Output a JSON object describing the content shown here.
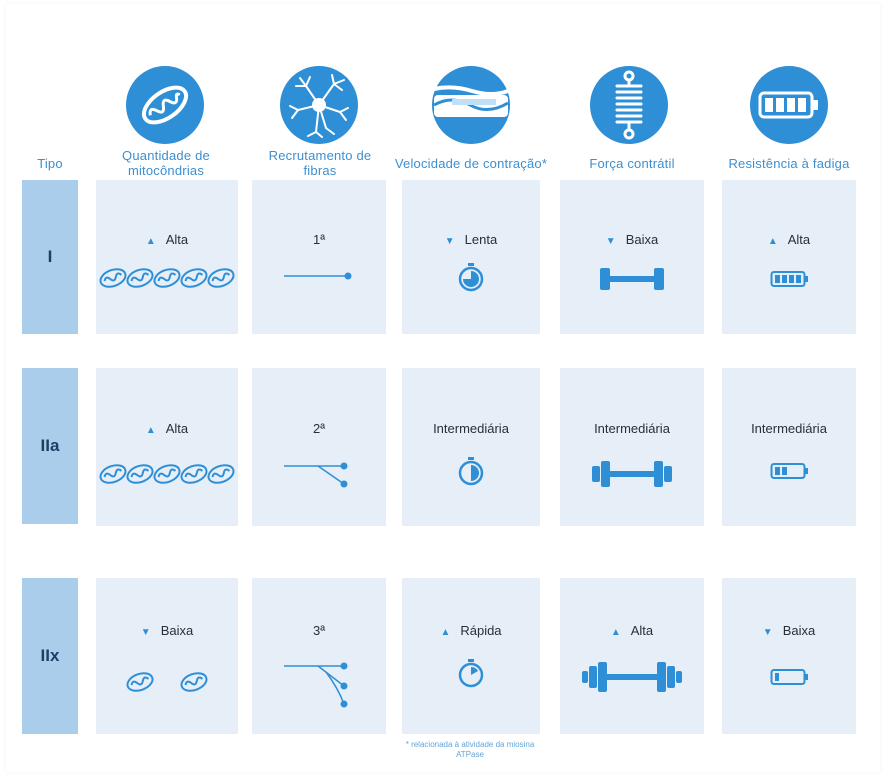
{
  "header": {
    "tipo": "Tipo",
    "columns": [
      {
        "id": "mito",
        "label": "Quantidade de mitocôndrias",
        "icon": "mitochondria-icon"
      },
      {
        "id": "recr",
        "label": "Recrutamento de fibras",
        "icon": "neuron-icon"
      },
      {
        "id": "vel",
        "label": "Velocidade de contração*",
        "icon": "muscle-fiber-icon"
      },
      {
        "id": "forca",
        "label": "Força contrátil",
        "icon": "spring-icon"
      },
      {
        "id": "resist",
        "label": "Resistência à fadiga",
        "icon": "battery-icon"
      }
    ]
  },
  "rows": [
    {
      "type": "I",
      "mito": {
        "arrow": "up",
        "label": "Alta"
      },
      "recr": {
        "label": "1ª"
      },
      "vel": {
        "arrow": "down",
        "label": "Lenta"
      },
      "forca": {
        "arrow": "down",
        "label": "Baixa"
      },
      "resist": {
        "arrow": "up",
        "label": "Alta"
      }
    },
    {
      "type": "IIa",
      "mito": {
        "arrow": "up",
        "label": "Alta"
      },
      "recr": {
        "label": "2ª"
      },
      "vel": {
        "arrow": "",
        "label": "Intermediária"
      },
      "forca": {
        "arrow": "",
        "label": "Intermediária"
      },
      "resist": {
        "arrow": "",
        "label": "Intermediária"
      }
    },
    {
      "type": "IIx",
      "mito": {
        "arrow": "down",
        "label": "Baixa"
      },
      "recr": {
        "label": "3ª"
      },
      "vel": {
        "arrow": "up",
        "label": "Rápida"
      },
      "forca": {
        "arrow": "up",
        "label": "Alta"
      },
      "resist": {
        "arrow": "down",
        "label": "Baixa"
      }
    }
  ],
  "footnote": "* relacionada à atividade da miosina ATPase",
  "colors": {
    "accent": "#2f8fd6",
    "cell": "#e6eef8",
    "type_cell": "#a9cdea"
  }
}
